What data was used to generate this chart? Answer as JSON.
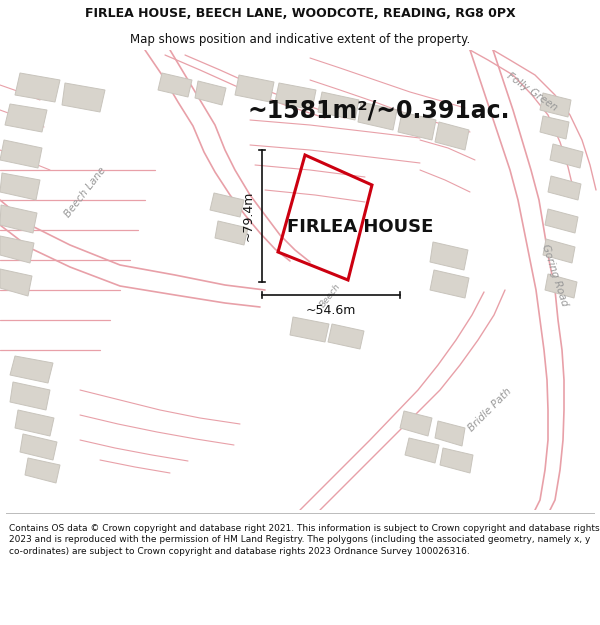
{
  "title_line1": "FIRLEA HOUSE, BEECH LANE, WOODCOTE, READING, RG8 0PX",
  "title_line2": "Map shows position and indicative extent of the property.",
  "area_label": "~1581m²/~0.391ac.",
  "property_label": "FIRLEA HOUSE",
  "dim_width": "~54.6m",
  "dim_height": "~79.4m",
  "footer_text": "Contains OS data © Crown copyright and database right 2021. This information is subject to Crown copyright and database rights 2023 and is reproduced with the permission of HM Land Registry. The polygons (including the associated geometry, namely x, y co-ordinates) are subject to Crown copyright and database rights 2023 Ordnance Survey 100026316.",
  "map_bg": "#f5f2ee",
  "road_line_color": "#e8a0a8",
  "building_fill": "#d8d4cc",
  "building_outline": "#c8c4bc",
  "property_outline": "#cc0010",
  "dim_line_color": "#111111",
  "text_color": "#111111",
  "road_label_color": "#999999",
  "white_bg": "#ffffff",
  "title_fontsize": 9.0,
  "subtitle_fontsize": 8.5,
  "area_fontsize": 17,
  "property_fontsize": 13,
  "dim_fontsize": 9,
  "road_label_fontsize": 7.5,
  "footer_fontsize": 6.5
}
